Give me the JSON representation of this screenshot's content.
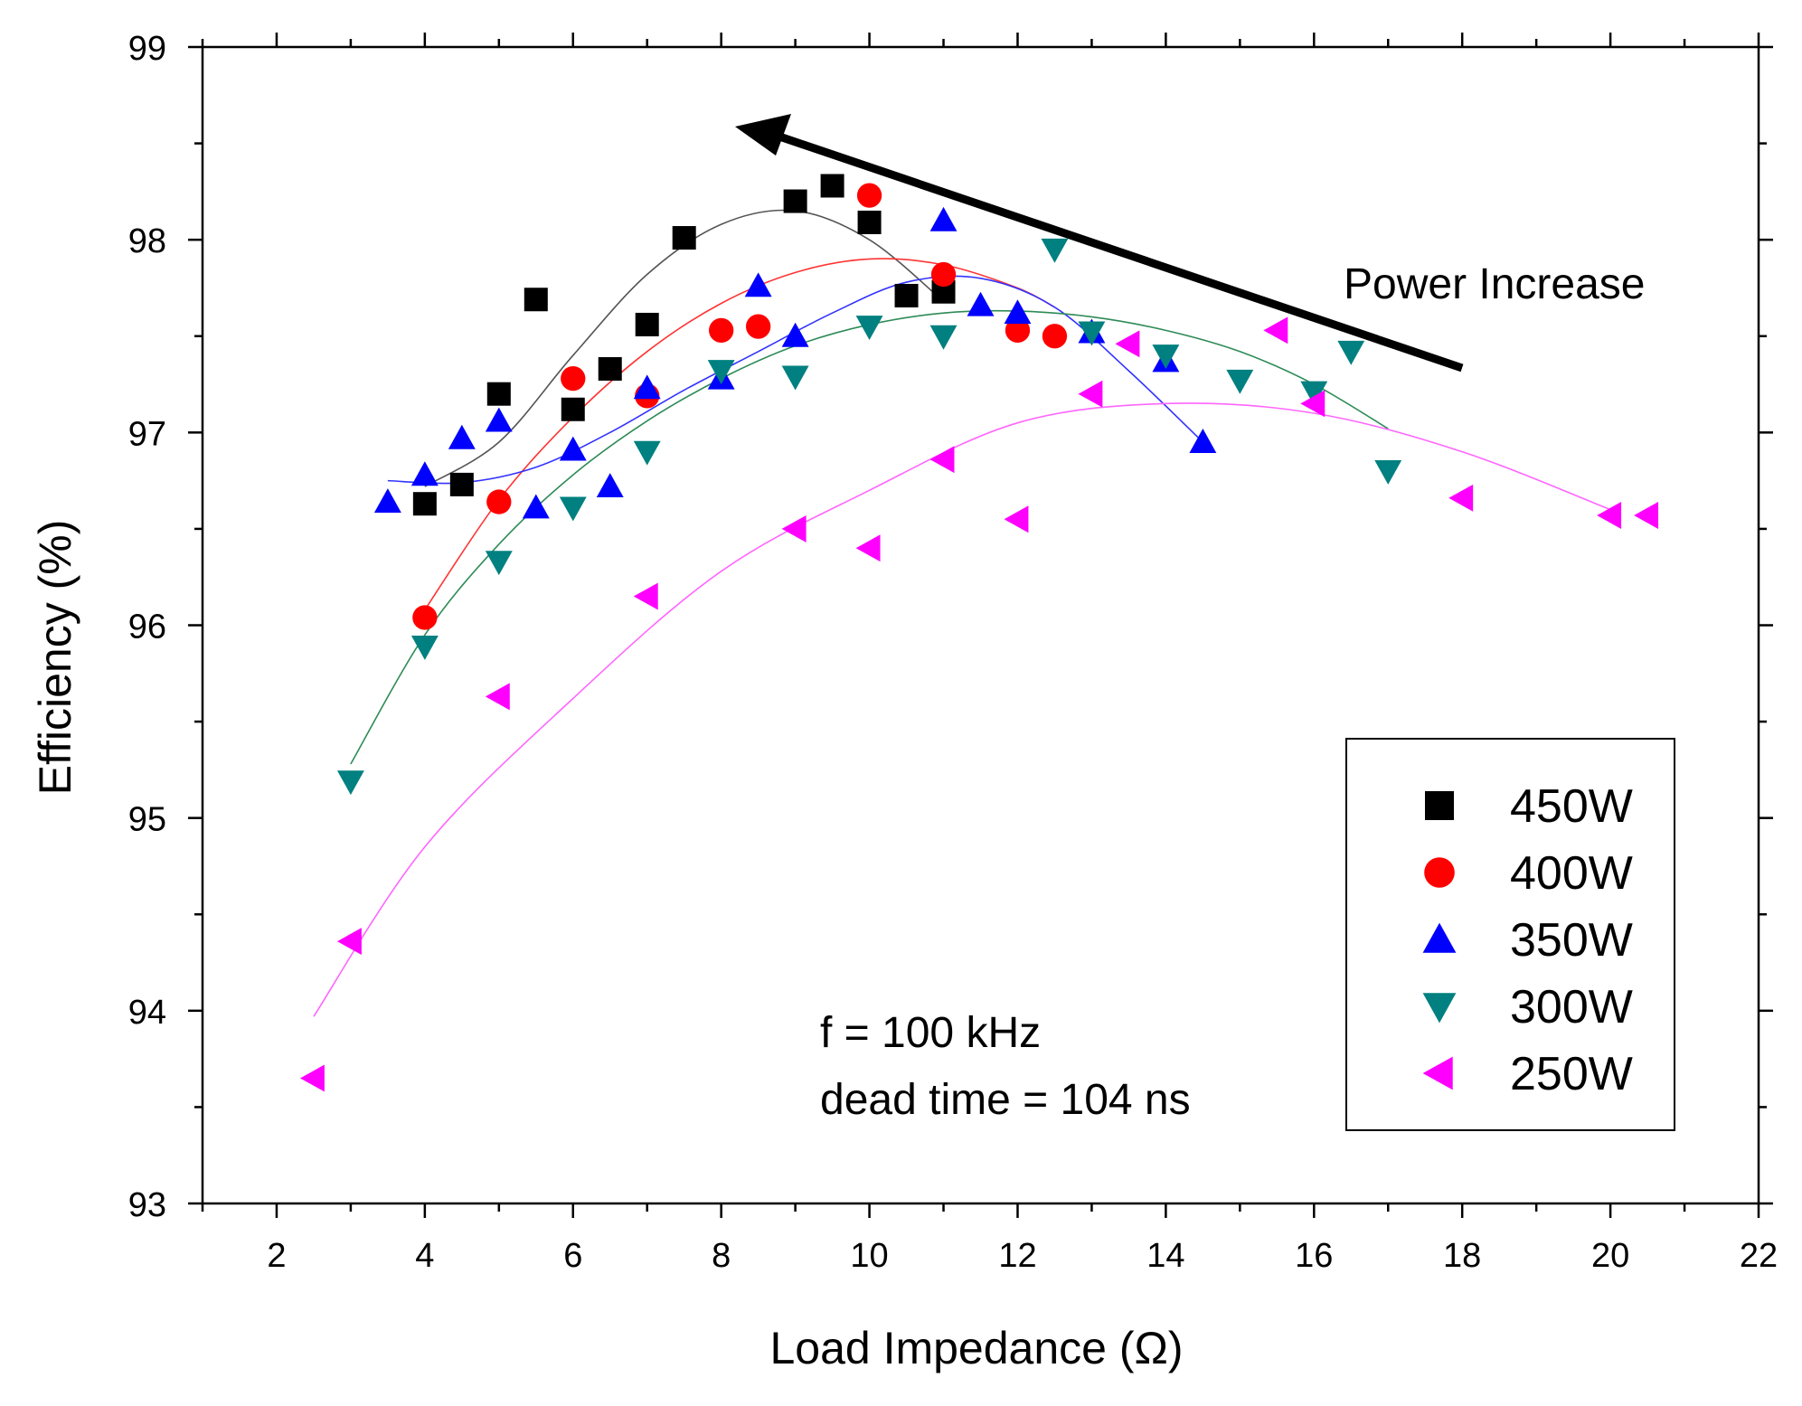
{
  "chart_data": {
    "type": "scatter",
    "xlabel": "Load Impedance (Ω)",
    "ylabel": "Efficiency (%)",
    "xlim": [
      1,
      22
    ],
    "ylim": [
      93,
      99
    ],
    "xticks": [
      2,
      4,
      6,
      8,
      10,
      12,
      14,
      16,
      18,
      20,
      22
    ],
    "yticks": [
      93,
      94,
      95,
      96,
      97,
      98,
      99
    ],
    "grid": false,
    "legend_position": "bottom-right",
    "annotations": {
      "arrow_label": "Power Increase",
      "conditions": [
        "f = 100 kHz",
        "dead time = 104 ns"
      ]
    },
    "series": [
      {
        "name": "450W",
        "marker": "square",
        "color": "#000000",
        "fit_color": "#555555",
        "points": [
          [
            4,
            96.63
          ],
          [
            4.5,
            96.73
          ],
          [
            5,
            97.2
          ],
          [
            5.5,
            97.69
          ],
          [
            6,
            97.12
          ],
          [
            6.5,
            97.33
          ],
          [
            7,
            97.56
          ],
          [
            7.5,
            98.01
          ],
          [
            9,
            98.2
          ],
          [
            9.5,
            98.28
          ],
          [
            10,
            98.09
          ],
          [
            10.5,
            97.71
          ],
          [
            11,
            97.73
          ]
        ],
        "fit": [
          [
            4,
            96.72
          ],
          [
            5,
            96.95
          ],
          [
            6,
            97.4
          ],
          [
            7,
            97.82
          ],
          [
            8,
            98.08
          ],
          [
            9,
            98.15
          ],
          [
            10,
            98.0
          ],
          [
            11,
            97.68
          ]
        ]
      },
      {
        "name": "400W",
        "marker": "circle",
        "color": "#ff0000",
        "fit_color": "#ff3333",
        "points": [
          [
            4,
            96.04
          ],
          [
            5,
            96.64
          ],
          [
            6,
            97.28
          ],
          [
            7,
            97.19
          ],
          [
            8,
            97.53
          ],
          [
            8.5,
            97.55
          ],
          [
            10,
            98.23
          ],
          [
            11,
            97.82
          ],
          [
            12,
            97.53
          ],
          [
            12.5,
            97.5
          ]
        ],
        "fit": [
          [
            4,
            96.08
          ],
          [
            5,
            96.65
          ],
          [
            6,
            97.08
          ],
          [
            7,
            97.42
          ],
          [
            8,
            97.67
          ],
          [
            9,
            97.83
          ],
          [
            10,
            97.9
          ],
          [
            11,
            97.87
          ],
          [
            12,
            97.75
          ],
          [
            12.5,
            97.65
          ]
        ]
      },
      {
        "name": "350W",
        "marker": "triangle-up",
        "color": "#0000ff",
        "fit_color": "#3333ff",
        "points": [
          [
            3.5,
            96.64
          ],
          [
            4,
            96.78
          ],
          [
            4.5,
            96.97
          ],
          [
            5,
            97.06
          ],
          [
            5.5,
            96.61
          ],
          [
            6,
            96.91
          ],
          [
            6.5,
            96.72
          ],
          [
            7,
            97.23
          ],
          [
            8,
            97.28
          ],
          [
            8.5,
            97.76
          ],
          [
            9,
            97.5
          ],
          [
            11,
            98.1
          ],
          [
            11.5,
            97.66
          ],
          [
            12,
            97.62
          ],
          [
            13,
            97.52
          ],
          [
            14,
            97.37
          ],
          [
            14.5,
            96.95
          ]
        ],
        "fit": [
          [
            3.5,
            96.75
          ],
          [
            4.5,
            96.74
          ],
          [
            5.5,
            96.82
          ],
          [
            6.5,
            97.0
          ],
          [
            7.5,
            97.22
          ],
          [
            8.5,
            97.42
          ],
          [
            9.5,
            97.62
          ],
          [
            10.5,
            97.78
          ],
          [
            11.5,
            97.8
          ],
          [
            12.5,
            97.65
          ],
          [
            13.5,
            97.32
          ],
          [
            14.5,
            96.95
          ]
        ]
      },
      {
        "name": "300W",
        "marker": "triangle-down",
        "color": "#008080",
        "fit_color": "#2e8b57",
        "points": [
          [
            3,
            95.19
          ],
          [
            4,
            95.89
          ],
          [
            5,
            96.33
          ],
          [
            6,
            96.61
          ],
          [
            7,
            96.9
          ],
          [
            8,
            97.32
          ],
          [
            9,
            97.29
          ],
          [
            10,
            97.55
          ],
          [
            11,
            97.5
          ],
          [
            12.5,
            97.95
          ],
          [
            13,
            97.52
          ],
          [
            14,
            97.4
          ],
          [
            15,
            97.27
          ],
          [
            16,
            97.21
          ],
          [
            16.5,
            97.42
          ],
          [
            17,
            96.8
          ]
        ],
        "fit": [
          [
            3,
            95.28
          ],
          [
            4,
            95.95
          ],
          [
            5,
            96.42
          ],
          [
            6,
            96.78
          ],
          [
            7,
            97.06
          ],
          [
            8,
            97.28
          ],
          [
            9,
            97.45
          ],
          [
            10,
            97.56
          ],
          [
            11,
            97.62
          ],
          [
            12,
            97.63
          ],
          [
            13,
            97.6
          ],
          [
            14,
            97.53
          ],
          [
            15,
            97.42
          ],
          [
            16,
            97.25
          ],
          [
            17,
            97.02
          ]
        ]
      },
      {
        "name": "250W",
        "marker": "triangle-left",
        "color": "#ff00ff",
        "fit_color": "#ff66ff",
        "points": [
          [
            2.5,
            93.65
          ],
          [
            3,
            94.36
          ],
          [
            5,
            95.63
          ],
          [
            7,
            96.15
          ],
          [
            9,
            96.5
          ],
          [
            10,
            96.4
          ],
          [
            11,
            96.86
          ],
          [
            12,
            96.55
          ],
          [
            13,
            97.2
          ],
          [
            13.5,
            97.46
          ],
          [
            15.5,
            97.53
          ],
          [
            16,
            97.15
          ],
          [
            18,
            96.66
          ],
          [
            20,
            96.57
          ],
          [
            20.5,
            96.57
          ]
        ],
        "fit": [
          [
            2.5,
            93.97
          ],
          [
            4,
            94.85
          ],
          [
            6,
            95.62
          ],
          [
            8,
            96.28
          ],
          [
            10,
            96.7
          ],
          [
            12,
            97.05
          ],
          [
            14,
            97.15
          ],
          [
            16,
            97.1
          ],
          [
            18,
            96.9
          ],
          [
            20,
            96.6
          ]
        ]
      }
    ]
  }
}
